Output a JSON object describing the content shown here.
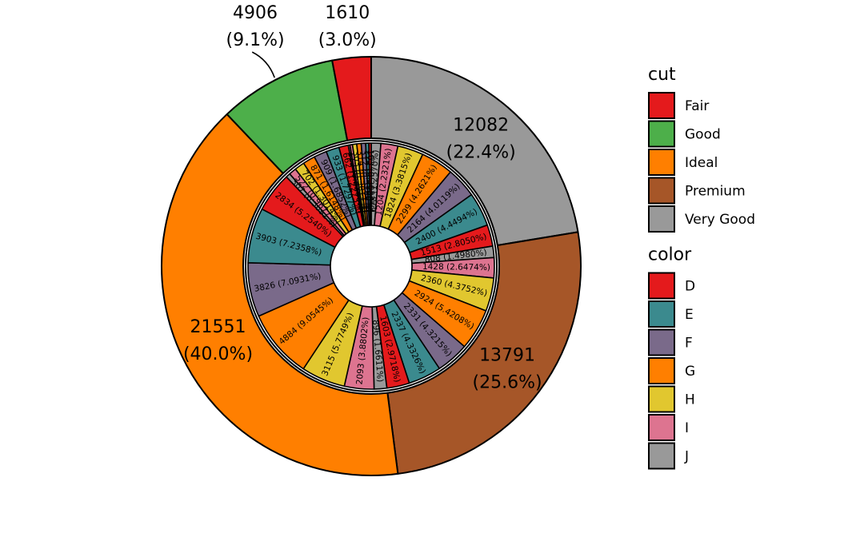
{
  "chart_data": {
    "type": "pie",
    "subtype": "nested-donut",
    "outer": {
      "dimension": "cut",
      "slices": [
        {
          "name": "Very Good",
          "value": 12082,
          "label": "12082",
          "pct_label": "(22.4%)"
        },
        {
          "name": "Premium",
          "value": 13791,
          "label": "13791",
          "pct_label": "(25.6%)"
        },
        {
          "name": "Ideal",
          "value": 21551,
          "label": "21551",
          "pct_label": "(40.0%)"
        },
        {
          "name": "Good",
          "value": 4906,
          "label": "4906",
          "pct_label": "(9.1%)"
        },
        {
          "name": "Fair",
          "value": 1610,
          "label": "1610",
          "pct_label": "(3.0%)"
        }
      ]
    },
    "inner": {
      "dimension": "color",
      "slices": [
        {
          "cut": "Very Good",
          "color": "J",
          "value": 678,
          "label": "678 (1.2570%)"
        },
        {
          "cut": "Very Good",
          "color": "I",
          "value": 1204,
          "label": "1204 (2.2321%)"
        },
        {
          "cut": "Very Good",
          "color": "H",
          "value": 1824,
          "label": "1824 (3.3815%)"
        },
        {
          "cut": "Very Good",
          "color": "G",
          "value": 2299,
          "label": "2299 (4.2621%)"
        },
        {
          "cut": "Very Good",
          "color": "F",
          "value": 2164,
          "label": "2164 (4.0119%)"
        },
        {
          "cut": "Very Good",
          "color": "E",
          "value": 2400,
          "label": "2400 (4.4494%)"
        },
        {
          "cut": "Very Good",
          "color": "D",
          "value": 1513,
          "label": "1513 (2.8050%)"
        },
        {
          "cut": "Premium",
          "color": "J",
          "value": 808,
          "label": "808 (1.4980%)"
        },
        {
          "cut": "Premium",
          "color": "I",
          "value": 1428,
          "label": "1428 (2.6474%)"
        },
        {
          "cut": "Premium",
          "color": "H",
          "value": 2360,
          "label": "2360 (4.3752%)"
        },
        {
          "cut": "Premium",
          "color": "G",
          "value": 2924,
          "label": "2924 (5.4208%)"
        },
        {
          "cut": "Premium",
          "color": "F",
          "value": 2331,
          "label": "2331 (4.3215%)"
        },
        {
          "cut": "Premium",
          "color": "E",
          "value": 2337,
          "label": "2337 (4.3326%)"
        },
        {
          "cut": "Premium",
          "color": "D",
          "value": 1603,
          "label": "1603 (2.9718%)"
        },
        {
          "cut": "Ideal",
          "color": "J",
          "value": 896,
          "label": "896 (1.6611%)"
        },
        {
          "cut": "Ideal",
          "color": "I",
          "value": 2093,
          "label": "2093 (3.8802%)"
        },
        {
          "cut": "Ideal",
          "color": "H",
          "value": 3115,
          "label": "3115 (5.7749%)"
        },
        {
          "cut": "Ideal",
          "color": "G",
          "value": 4884,
          "label": "4884 (9.0545%)"
        },
        {
          "cut": "Ideal",
          "color": "F",
          "value": 3826,
          "label": "3826 (7.0931%)"
        },
        {
          "cut": "Ideal",
          "color": "E",
          "value": 3903,
          "label": "3903 (7.2358%)"
        },
        {
          "cut": "Ideal",
          "color": "D",
          "value": 2834,
          "label": "2834 (5.2540%)"
        },
        {
          "cut": "Good",
          "color": "J",
          "value": 307,
          "label": "307 (0.5692%)"
        },
        {
          "cut": "Good",
          "color": "I",
          "value": 522,
          "label": "522 (0.9677%)"
        },
        {
          "cut": "Good",
          "color": "H",
          "value": 702,
          "label": "702 (1.3014%)"
        },
        {
          "cut": "Good",
          "color": "G",
          "value": 871,
          "label": "871 (1.6148%)"
        },
        {
          "cut": "Good",
          "color": "F",
          "value": 909,
          "label": "909 (1.6852%)"
        },
        {
          "cut": "Good",
          "color": "E",
          "value": 933,
          "label": "933 (1.7297%)"
        },
        {
          "cut": "Good",
          "color": "D",
          "value": 662,
          "label": "662 (1.2273%)"
        },
        {
          "cut": "Fair",
          "color": "J",
          "value": 119,
          "label": "119 (0.2206%)"
        },
        {
          "cut": "Fair",
          "color": "I",
          "value": 175,
          "label": "175 (0.3244%)"
        },
        {
          "cut": "Fair",
          "color": "H",
          "value": 303,
          "label": "303 (0.5617%)"
        },
        {
          "cut": "Fair",
          "color": "G",
          "value": 314,
          "label": "314 (0.5821%)"
        },
        {
          "cut": "Fair",
          "color": "F",
          "value": 312,
          "label": "312 (0.5784%)"
        },
        {
          "cut": "Fair",
          "color": "E",
          "value": 224,
          "label": "224 (0.4153%)"
        },
        {
          "cut": "Fair",
          "color": "D",
          "value": 163,
          "label": "163 (0.3022%)"
        }
      ]
    },
    "legends": [
      {
        "title": "cut",
        "entries": [
          {
            "label": "Fair",
            "color": "#e41a1c"
          },
          {
            "label": "Good",
            "color": "#4daf4a"
          },
          {
            "label": "Ideal",
            "color": "#ff7f00"
          },
          {
            "label": "Premium",
            "color": "#a65628"
          },
          {
            "label": "Very Good",
            "color": "#999999"
          }
        ]
      },
      {
        "title": "color",
        "entries": [
          {
            "label": "D",
            "color": "#e41a1c"
          },
          {
            "label": "E",
            "color": "#3b8a8e"
          },
          {
            "label": "F",
            "color": "#7a6a8a"
          },
          {
            "label": "G",
            "color": "#ff7f00"
          },
          {
            "label": "H",
            "color": "#e1c72f"
          },
          {
            "label": "I",
            "color": "#dd7490"
          },
          {
            "label": "J",
            "color": "#999999"
          }
        ]
      }
    ],
    "start_angle_deg": 90,
    "direction": "clockwise",
    "legend_position": "right"
  }
}
